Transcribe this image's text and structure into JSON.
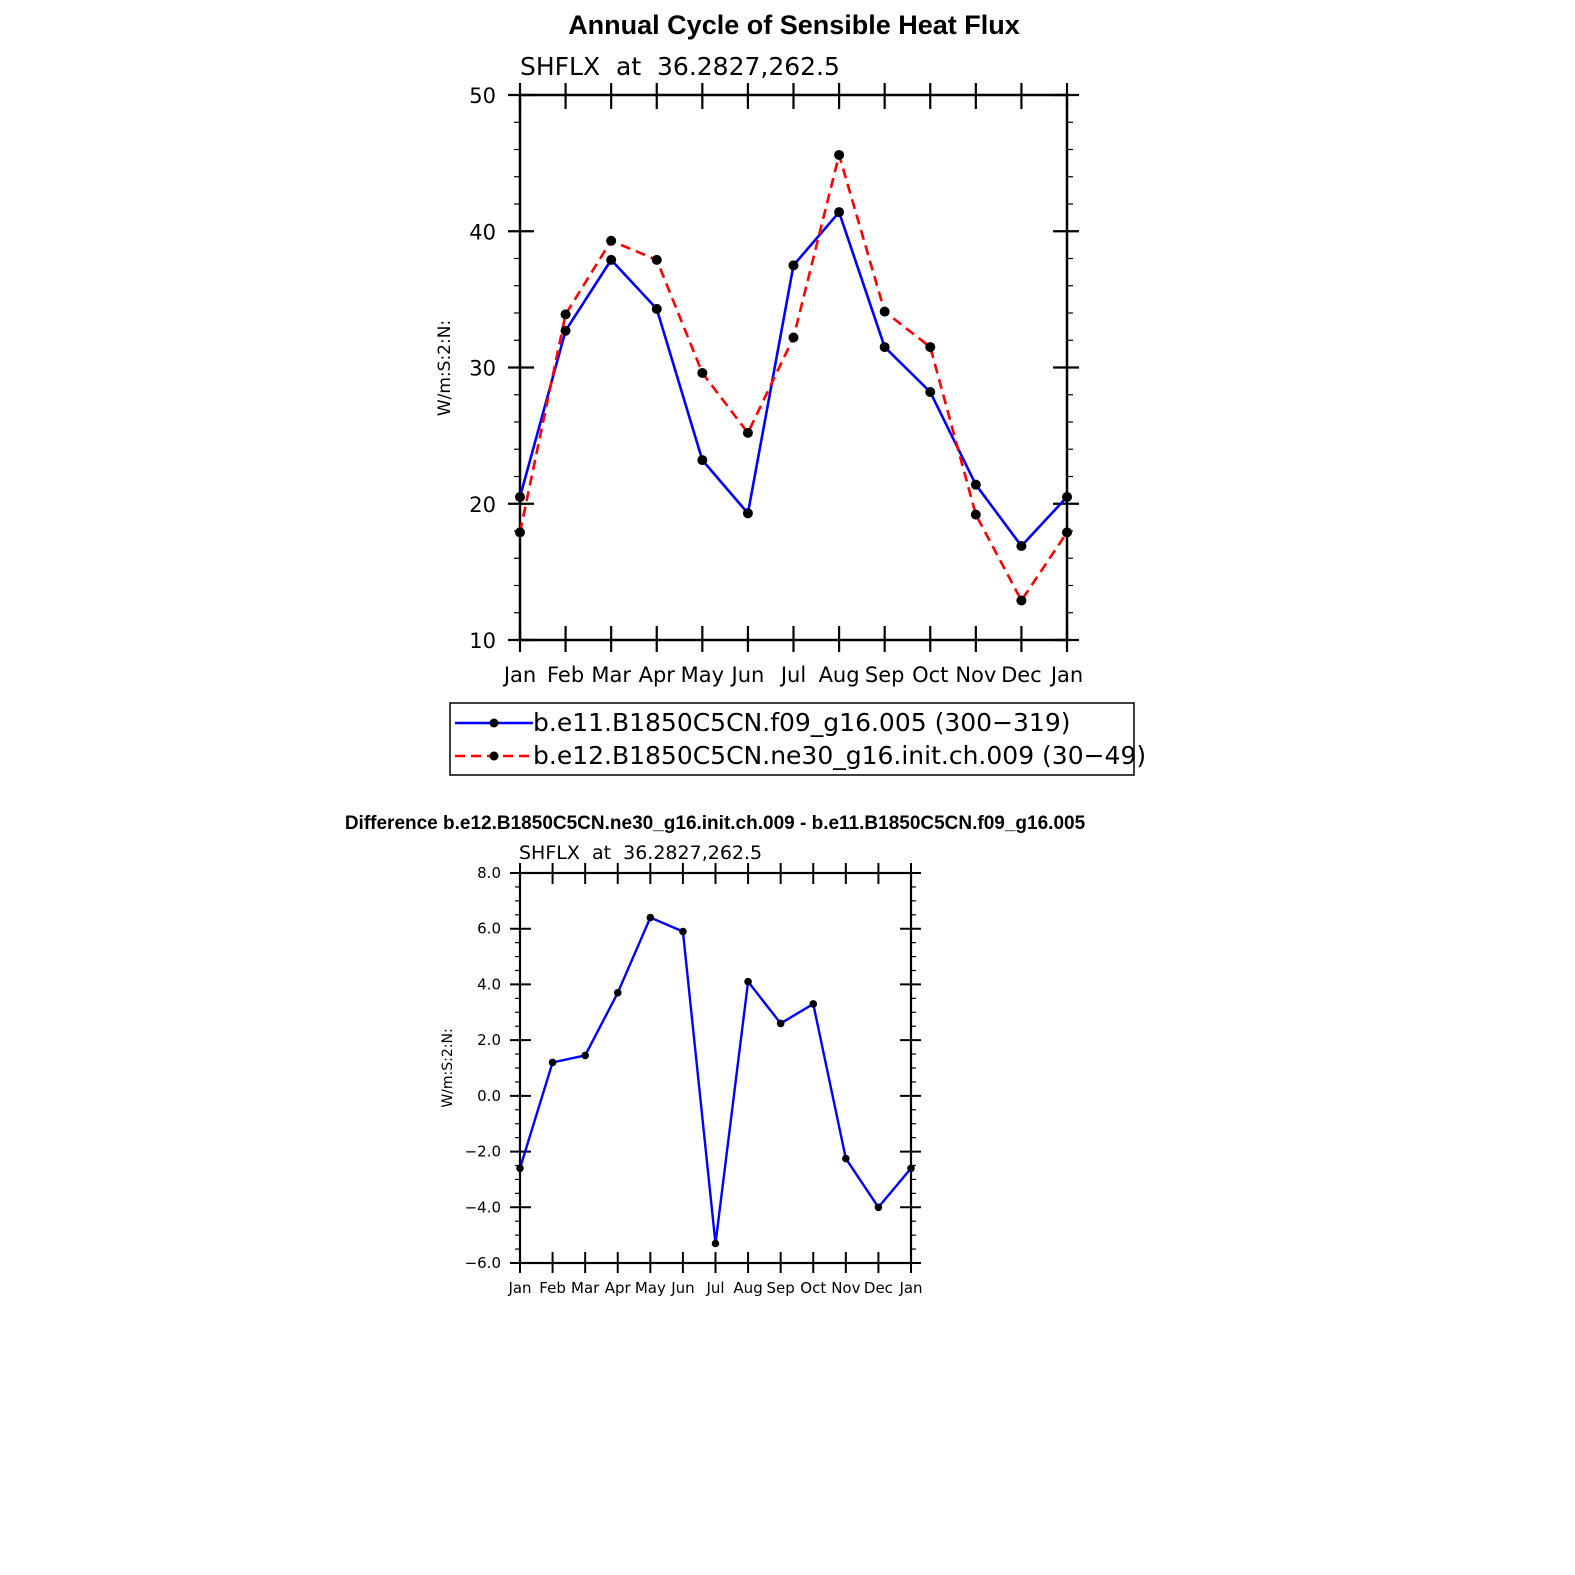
{
  "chart_data": [
    {
      "type": "line",
      "title": "Annual Cycle of Sensible Heat Flux",
      "subtitle": "SHFLX  at  36.2827,262.5",
      "ylabel": "W/m:S:2:N:",
      "ylim": [
        10,
        50
      ],
      "yticks": [
        "10",
        "20",
        "30",
        "40",
        "50"
      ],
      "categories": [
        "Jan",
        "Feb",
        "Mar",
        "Apr",
        "May",
        "Jun",
        "Jul",
        "Aug",
        "Sep",
        "Oct",
        "Nov",
        "Dec",
        "Jan"
      ],
      "series": [
        {
          "name": "b.e11.B1850C5CN.f09_g16.005 (300−319)",
          "color": "#0000ff",
          "dash": "solid",
          "values": [
            20.5,
            32.7,
            37.9,
            34.3,
            23.2,
            19.3,
            37.5,
            41.4,
            31.5,
            28.2,
            21.4,
            16.9,
            20.5
          ]
        },
        {
          "name": "b.e12.B1850C5CN.ne30_g16.init.ch.009 (30−49)",
          "color": "#ff0000",
          "dash": "dashed",
          "values": [
            17.9,
            33.9,
            39.3,
            37.9,
            29.6,
            25.2,
            32.2,
            45.6,
            34.1,
            31.5,
            19.2,
            12.9,
            17.9
          ]
        }
      ],
      "legend": "bottom"
    },
    {
      "type": "line",
      "title": "Difference b.e12.B1850C5CN.ne30_g16.init.ch.009 - b.e11.B1850C5CN.f09_g16.005",
      "subtitle": "SHFLX  at  36.2827,262.5",
      "ylabel": "W/m:S:2:N:",
      "ylim": [
        -6,
        8
      ],
      "yticks": [
        "−6.0",
        "−4.0",
        "−2.0",
        "0.0",
        "2.0",
        "4.0",
        "6.0",
        "8.0"
      ],
      "categories": [
        "Jan",
        "Feb",
        "Mar",
        "Apr",
        "May",
        "Jun",
        "Jul",
        "Aug",
        "Sep",
        "Oct",
        "Nov",
        "Dec",
        "Jan"
      ],
      "series": [
        {
          "color": "#0000ff",
          "dash": "solid",
          "values": [
            -2.6,
            1.2,
            1.45,
            3.7,
            6.4,
            5.9,
            -5.3,
            4.1,
            2.6,
            3.3,
            -2.25,
            -4.0,
            -2.6
          ]
        }
      ]
    }
  ]
}
